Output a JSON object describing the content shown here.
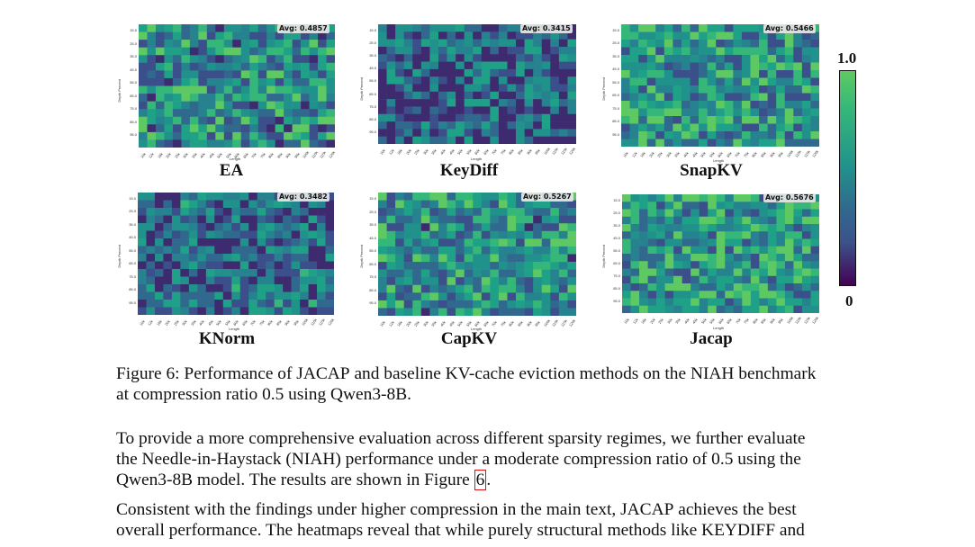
{
  "colorbar": {
    "max_label": "1.0",
    "min_label": "0"
  },
  "panels": [
    {
      "title": "EA",
      "avg": "Avg: 0.4857",
      "ylabel": "Depth Percent",
      "xlabel": "Length"
    },
    {
      "title": "KeyDiff",
      "avg": "Avg: 0.3415",
      "ylabel": "Depth Percent",
      "xlabel": "Length"
    },
    {
      "title": "SnapKV",
      "avg": "Avg: 0.5466",
      "ylabel": "Depth Percent",
      "xlabel": "Length"
    },
    {
      "title": "KNorm",
      "avg": "Avg: 0.3482",
      "ylabel": "Depth Percent",
      "xlabel": "Length"
    },
    {
      "title": "CapKV",
      "avg": "Avg: 0.5267",
      "ylabel": "Depth Percent",
      "xlabel": "Length"
    },
    {
      "title": "Jacap",
      "avg": "Avg: 0.5676",
      "ylabel": "Depth Percent",
      "xlabel": "Length"
    }
  ],
  "y_ticks": [
    "15.0",
    "25.0",
    "35.0",
    "45.0",
    "55.0",
    "65.0",
    "75.0",
    "85.0",
    "95.0"
  ],
  "x_ticks": [
    "10k",
    "12k",
    "16k",
    "20k",
    "25k",
    "30k",
    "35k",
    "40k",
    "45k",
    "50k",
    "55k",
    "60k",
    "65k",
    "70k",
    "75k",
    "80k",
    "85k",
    "90k",
    "95k",
    "100k",
    "110k",
    "115k",
    "120k"
  ],
  "caption": {
    "line1_a": "Figure 6: Performance of J",
    "line1_sc": "ACAP",
    "line1_b": " and baseline KV-cache eviction methods on the NIAH benchmark",
    "line2": "at compression ratio 0.5 using Qwen3-8B."
  },
  "para1": {
    "line1": "To provide a more comprehensive evaluation across different sparsity regimes, we further evaluate",
    "line2": "the Needle-in-Haystack (NIAH) performance under a moderate compression ratio of 0.5 using the",
    "line3": "Qwen3-8B model. The results are shown in Figure ",
    "figref": "6",
    "line3_end": "."
  },
  "para2": {
    "line1_a": "Consistent with the findings under higher compression in the main text, J",
    "line1_sc": "ACAP",
    "line1_b": " achieves the best",
    "line2_a": "overall performance. The heatmaps reveal that while purely structural methods like K",
    "line2_sc1": "EY",
    "line2_mid": "D",
    "line2_sc2": "IFF",
    "line2_b": " and"
  }
}
